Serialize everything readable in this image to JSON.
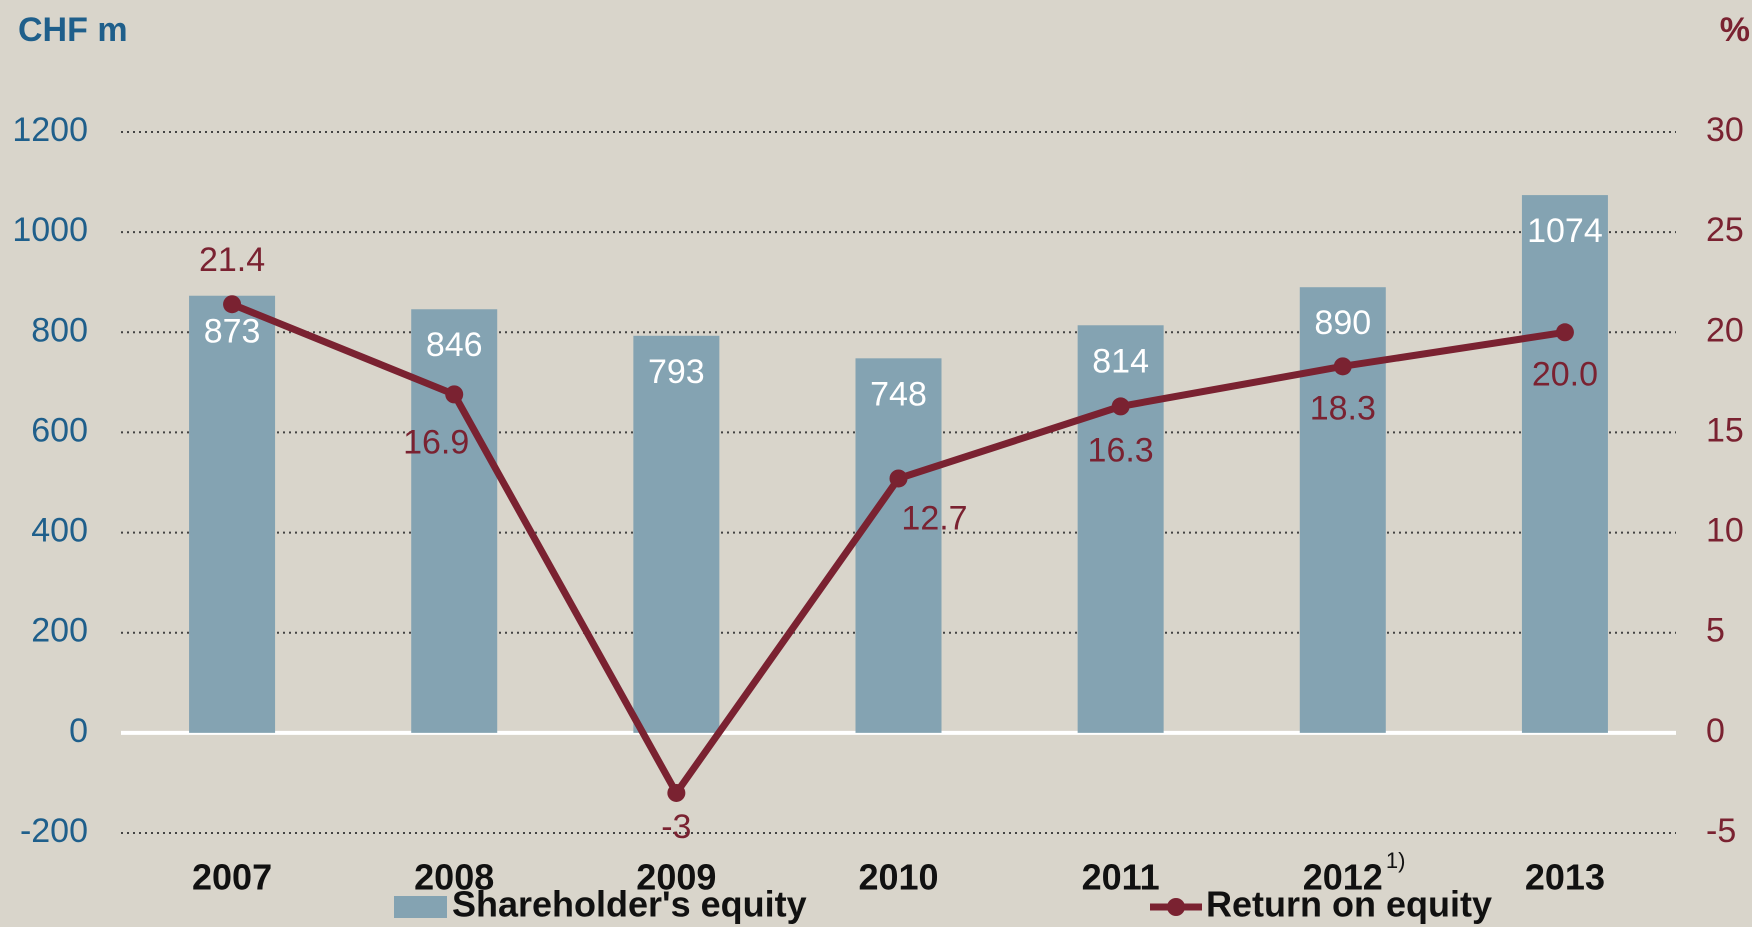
{
  "chart_data": {
    "type": "bar",
    "y_axis_label": "CHF m",
    "y2_axis_label": "%",
    "categories": [
      "2007",
      "2008",
      "2009",
      "2010",
      "2011",
      "2012",
      "2013"
    ],
    "category_footnotes": [
      null,
      null,
      null,
      null,
      null,
      "1)",
      null
    ],
    "series": [
      {
        "name": "Shareholder's equity",
        "type": "bar",
        "color": "#84a3b2",
        "values": [
          873,
          846,
          793,
          748,
          814,
          890,
          1074
        ]
      },
      {
        "name": "Return on equity",
        "type": "line",
        "axis": "y2",
        "color": "#7a2231",
        "values": [
          21.4,
          16.9,
          -3,
          12.7,
          16.3,
          18.3,
          20.0
        ],
        "value_labels": [
          "21.4",
          "16.9",
          "-3",
          "12.7",
          "16.3",
          "18.3",
          "20.0"
        ]
      }
    ],
    "ylim": [
      -200,
      1200
    ],
    "yticks": [
      -200,
      0,
      200,
      400,
      600,
      800,
      1000,
      1200
    ],
    "y2lim": [
      -5,
      30
    ],
    "y2ticks": [
      -5,
      0,
      5,
      10,
      15,
      20,
      25,
      30
    ],
    "grid": true,
    "legend": "bottom"
  }
}
